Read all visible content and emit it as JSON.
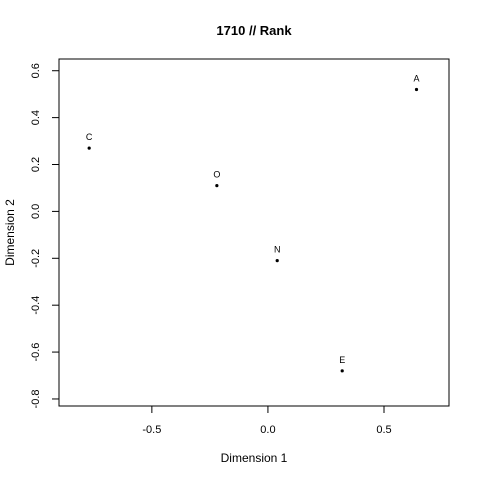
{
  "chart_data": {
    "type": "scatter",
    "title": "1710 // Rank",
    "xlabel": "Dimension 1",
    "ylabel": "Dimension 2",
    "xlim": [
      -0.9,
      0.78
    ],
    "ylim": [
      -0.83,
      0.65
    ],
    "xticks": [
      -0.5,
      0.0,
      0.5
    ],
    "yticks": [
      -0.8,
      -0.6,
      -0.4,
      -0.2,
      0.0,
      0.2,
      0.4,
      0.6
    ],
    "xtick_labels": [
      "-0.5",
      "0.0",
      "0.5"
    ],
    "ytick_labels": [
      "-0.8",
      "-0.6",
      "-0.4",
      "-0.2",
      "0.0",
      "0.2",
      "0.4",
      "0.6"
    ],
    "grid": false,
    "points": [
      {
        "label": "A",
        "x": 0.64,
        "y": 0.52
      },
      {
        "label": "C",
        "x": -0.77,
        "y": 0.27
      },
      {
        "label": "O",
        "x": -0.22,
        "y": 0.11
      },
      {
        "label": "N",
        "x": 0.04,
        "y": -0.21
      },
      {
        "label": "E",
        "x": 0.32,
        "y": -0.68
      }
    ]
  }
}
